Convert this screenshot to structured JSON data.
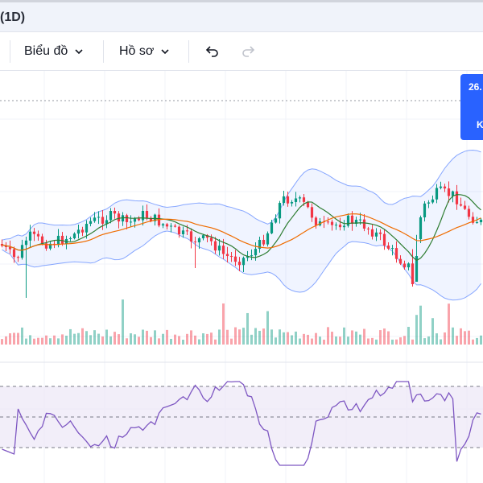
{
  "header": {
    "title": "(1D)"
  },
  "toolbar": {
    "chart_menu_label": "Biểu đồ",
    "profile_menu_label": "Hồ sơ",
    "undo_icon": "undo-icon",
    "redo_icon": "redo-icon"
  },
  "price_badge": {
    "price": "26.",
    "suffix": "K"
  },
  "colors": {
    "up": "#089981",
    "down": "#f23645",
    "band_line": "#2962ff",
    "band_fill": "#2962ff",
    "ma_fast": "#2e7d32",
    "ma_slow": "#ef6c00",
    "rsi_line": "#7e57c2",
    "rsi_fill": "#ede7f6",
    "accent": "#2962ff"
  }
}
